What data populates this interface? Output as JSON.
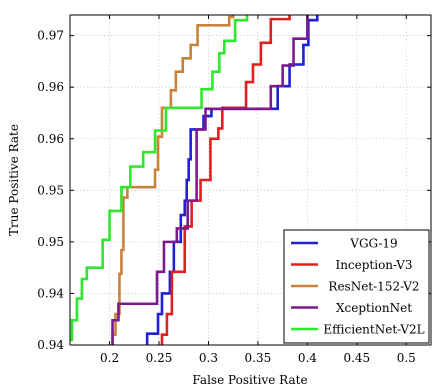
{
  "chart_data": {
    "type": "line",
    "title": "",
    "xlabel": "False Positive Rate",
    "ylabel": "True Positive Rate",
    "xlim": [
      0.16,
      0.525
    ],
    "ylim": [
      0.9395,
      0.9715
    ],
    "grid": true,
    "legend_position": "bottom-right",
    "x_ticks": [
      {
        "value": 0.2,
        "label": "0.2"
      },
      {
        "value": 0.25,
        "label": "0.25"
      },
      {
        "value": 0.3,
        "label": "0.3"
      },
      {
        "value": 0.35,
        "label": "0.35"
      },
      {
        "value": 0.4,
        "label": "0.4"
      },
      {
        "value": 0.45,
        "label": "0.45"
      },
      {
        "value": 0.5,
        "label": "0.5"
      }
    ],
    "y_ticks": [
      {
        "value": 0.9395,
        "label": "0.94"
      },
      {
        "value": 0.9445,
        "label": "0.94"
      },
      {
        "value": 0.9495,
        "label": "0.95"
      },
      {
        "value": 0.9545,
        "label": "0.95"
      },
      {
        "value": 0.9595,
        "label": "0.96"
      },
      {
        "value": 0.9645,
        "label": "0.96"
      },
      {
        "value": 0.9695,
        "label": "0.97"
      }
    ],
    "series": [
      {
        "name": "VGG-19",
        "color": "#1f1fd6",
        "points": [
          [
            0.238,
            0.9395
          ],
          [
            0.238,
            0.9406
          ],
          [
            0.249,
            0.9406
          ],
          [
            0.249,
            0.9425
          ],
          [
            0.253,
            0.9425
          ],
          [
            0.253,
            0.9445
          ],
          [
            0.261,
            0.9445
          ],
          [
            0.261,
            0.9466
          ],
          [
            0.265,
            0.9466
          ],
          [
            0.265,
            0.9495
          ],
          [
            0.272,
            0.9495
          ],
          [
            0.272,
            0.9521
          ],
          [
            0.276,
            0.9521
          ],
          [
            0.276,
            0.9535
          ],
          [
            0.278,
            0.9535
          ],
          [
            0.278,
            0.9555
          ],
          [
            0.28,
            0.9555
          ],
          [
            0.28,
            0.9575
          ],
          [
            0.282,
            0.9575
          ],
          [
            0.282,
            0.9604
          ],
          [
            0.295,
            0.9604
          ],
          [
            0.295,
            0.9617
          ],
          [
            0.303,
            0.9617
          ],
          [
            0.303,
            0.9624
          ],
          [
            0.37,
            0.9624
          ],
          [
            0.37,
            0.9646
          ],
          [
            0.382,
            0.9646
          ],
          [
            0.382,
            0.9667
          ],
          [
            0.396,
            0.9667
          ],
          [
            0.396,
            0.9686
          ],
          [
            0.401,
            0.9686
          ],
          [
            0.401,
            0.971
          ],
          [
            0.41,
            0.971
          ],
          [
            0.41,
            0.9715
          ]
        ]
      },
      {
        "name": "Inception-V3",
        "color": "#e01f1f",
        "points": [
          [
            0.253,
            0.9395
          ],
          [
            0.253,
            0.9405
          ],
          [
            0.258,
            0.9405
          ],
          [
            0.258,
            0.9425
          ],
          [
            0.263,
            0.9425
          ],
          [
            0.263,
            0.9466
          ],
          [
            0.276,
            0.9466
          ],
          [
            0.276,
            0.951
          ],
          [
            0.283,
            0.951
          ],
          [
            0.283,
            0.9535
          ],
          [
            0.292,
            0.9535
          ],
          [
            0.292,
            0.9555
          ],
          [
            0.302,
            0.9555
          ],
          [
            0.302,
            0.9595
          ],
          [
            0.31,
            0.9595
          ],
          [
            0.31,
            0.9605
          ],
          [
            0.314,
            0.9605
          ],
          [
            0.314,
            0.9625
          ],
          [
            0.338,
            0.9625
          ],
          [
            0.338,
            0.965
          ],
          [
            0.345,
            0.965
          ],
          [
            0.345,
            0.9667
          ],
          [
            0.353,
            0.9667
          ],
          [
            0.353,
            0.9688
          ],
          [
            0.363,
            0.9688
          ],
          [
            0.363,
            0.9711
          ],
          [
            0.382,
            0.9711
          ],
          [
            0.382,
            0.9715
          ]
        ]
      },
      {
        "name": "ResNet-152-V2",
        "color": "#c8823a",
        "points": [
          [
            0.203,
            0.9395
          ],
          [
            0.203,
            0.9405
          ],
          [
            0.206,
            0.9405
          ],
          [
            0.206,
            0.9425
          ],
          [
            0.21,
            0.9425
          ],
          [
            0.21,
            0.9464
          ],
          [
            0.212,
            0.9464
          ],
          [
            0.212,
            0.9487
          ],
          [
            0.214,
            0.9487
          ],
          [
            0.214,
            0.9538
          ],
          [
            0.218,
            0.9538
          ],
          [
            0.218,
            0.9548
          ],
          [
            0.246,
            0.9548
          ],
          [
            0.246,
            0.9565
          ],
          [
            0.249,
            0.9565
          ],
          [
            0.249,
            0.9597
          ],
          [
            0.253,
            0.9597
          ],
          [
            0.253,
            0.9625
          ],
          [
            0.262,
            0.9625
          ],
          [
            0.262,
            0.9642
          ],
          [
            0.267,
            0.9642
          ],
          [
            0.267,
            0.966
          ],
          [
            0.274,
            0.966
          ],
          [
            0.274,
            0.9673
          ],
          [
            0.282,
            0.9673
          ],
          [
            0.282,
            0.9686
          ],
          [
            0.289,
            0.9686
          ],
          [
            0.289,
            0.9705
          ],
          [
            0.321,
            0.9705
          ],
          [
            0.321,
            0.9713
          ],
          [
            0.325,
            0.9713
          ],
          [
            0.325,
            0.9715
          ]
        ]
      },
      {
        "name": "XceptionNet",
        "color": "#7a1a8e",
        "points": [
          [
            0.203,
            0.9395
          ],
          [
            0.203,
            0.9419
          ],
          [
            0.209,
            0.9419
          ],
          [
            0.209,
            0.9435
          ],
          [
            0.248,
            0.9435
          ],
          [
            0.248,
            0.9466
          ],
          [
            0.255,
            0.9466
          ],
          [
            0.255,
            0.9495
          ],
          [
            0.268,
            0.9495
          ],
          [
            0.268,
            0.9508
          ],
          [
            0.279,
            0.9508
          ],
          [
            0.279,
            0.9535
          ],
          [
            0.288,
            0.9535
          ],
          [
            0.288,
            0.9604
          ],
          [
            0.297,
            0.9604
          ],
          [
            0.297,
            0.9624
          ],
          [
            0.363,
            0.9624
          ],
          [
            0.363,
            0.9646
          ],
          [
            0.375,
            0.9646
          ],
          [
            0.375,
            0.9666
          ],
          [
            0.386,
            0.9666
          ],
          [
            0.386,
            0.9692
          ],
          [
            0.4,
            0.9692
          ],
          [
            0.4,
            0.9715
          ]
        ]
      },
      {
        "name": "EfficientNet-V2L",
        "color": "#2ee82e",
        "points": [
          [
            0.16,
            0.94
          ],
          [
            0.162,
            0.94
          ],
          [
            0.162,
            0.9419
          ],
          [
            0.167,
            0.9419
          ],
          [
            0.167,
            0.944
          ],
          [
            0.172,
            0.944
          ],
          [
            0.172,
            0.9459
          ],
          [
            0.177,
            0.9459
          ],
          [
            0.177,
            0.947
          ],
          [
            0.193,
            0.947
          ],
          [
            0.193,
            0.9497
          ],
          [
            0.2,
            0.9497
          ],
          [
            0.2,
            0.9525
          ],
          [
            0.212,
            0.9525
          ],
          [
            0.212,
            0.9548
          ],
          [
            0.221,
            0.9548
          ],
          [
            0.221,
            0.9568
          ],
          [
            0.234,
            0.9568
          ],
          [
            0.234,
            0.9582
          ],
          [
            0.246,
            0.9582
          ],
          [
            0.246,
            0.9603
          ],
          [
            0.257,
            0.9603
          ],
          [
            0.257,
            0.9625
          ],
          [
            0.293,
            0.9625
          ],
          [
            0.293,
            0.9643
          ],
          [
            0.304,
            0.9643
          ],
          [
            0.304,
            0.966
          ],
          [
            0.311,
            0.966
          ],
          [
            0.311,
            0.9678
          ],
          [
            0.316,
            0.9678
          ],
          [
            0.316,
            0.969
          ],
          [
            0.327,
            0.969
          ],
          [
            0.327,
            0.971
          ],
          [
            0.339,
            0.971
          ],
          [
            0.339,
            0.9715
          ]
        ]
      }
    ]
  }
}
